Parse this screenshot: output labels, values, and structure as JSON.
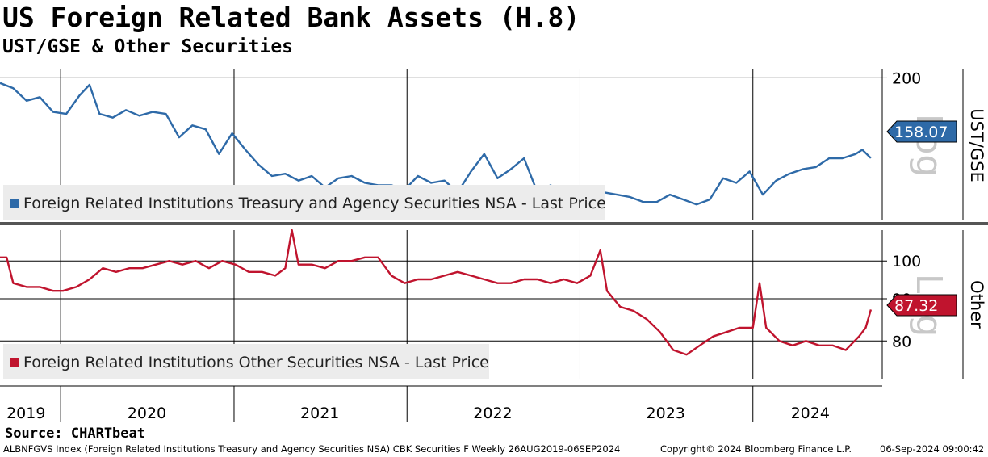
{
  "title": "US Foreign Related Bank Assets (H.8)",
  "subtitle": "UST/GSE & Other Securities",
  "source": "Source: CHARTbeat",
  "footer": {
    "left": "ALBNFGVS Index (Foreign Related Institutions Treasury and Agency Securities NSA) CBK Securities F  Weekly 26AUG2019-06SEP2024",
    "copyright": "Copyright© 2024 Bloomberg Finance L.P.",
    "timestamp": "06-Sep-2024 09:00:42"
  },
  "colors": {
    "top_series": "#2e6aa8",
    "bottom_series": "#c0142e",
    "separator": "#555555"
  },
  "chart_data": [
    {
      "type": "line",
      "panel": "top",
      "axis_label": "UST/GSE",
      "watermark": "Log",
      "y_scale": "log",
      "ylim": [
        132,
        205
      ],
      "yticks": [
        200
      ],
      "last_value_label": "158.07",
      "legend": "Foreign Related Institutions Treasury and Agency Securities NSA - Last Price",
      "series": [
        {
          "name": "Foreign Related Institutions Treasury and Agency Securities NSA - Last Price",
          "points": [
            [
              "2019-08-26",
              197
            ],
            [
              "2019-09-23",
              194
            ],
            [
              "2019-10-21",
              187
            ],
            [
              "2019-11-18",
              189
            ],
            [
              "2019-12-16",
              181
            ],
            [
              "2020-01-13",
              180
            ],
            [
              "2020-02-10",
              190
            ],
            [
              "2020-03-02",
              196
            ],
            [
              "2020-03-23",
              180
            ],
            [
              "2020-04-20",
              178
            ],
            [
              "2020-05-18",
              182
            ],
            [
              "2020-06-15",
              179
            ],
            [
              "2020-07-13",
              181
            ],
            [
              "2020-08-10",
              180
            ],
            [
              "2020-09-07",
              168
            ],
            [
              "2020-10-05",
              174
            ],
            [
              "2020-11-02",
              172
            ],
            [
              "2020-11-30",
              160
            ],
            [
              "2020-12-28",
              170
            ],
            [
              "2021-01-25",
              162
            ],
            [
              "2021-02-22",
              155
            ],
            [
              "2021-03-22",
              150
            ],
            [
              "2021-04-19",
              151
            ],
            [
              "2021-05-17",
              148
            ],
            [
              "2021-06-14",
              150
            ],
            [
              "2021-07-12",
              145
            ],
            [
              "2021-08-09",
              149
            ],
            [
              "2021-09-06",
              150
            ],
            [
              "2021-10-04",
              147
            ],
            [
              "2021-11-01",
              146
            ],
            [
              "2021-11-29",
              146
            ],
            [
              "2021-12-27",
              144
            ],
            [
              "2022-01-24",
              150
            ],
            [
              "2022-02-21",
              147
            ],
            [
              "2022-03-21",
              148
            ],
            [
              "2022-04-18",
              143
            ],
            [
              "2022-05-16",
              152
            ],
            [
              "2022-06-13",
              160
            ],
            [
              "2022-07-11",
              149
            ],
            [
              "2022-08-08",
              153
            ],
            [
              "2022-09-05",
              158
            ],
            [
              "2022-10-03",
              143
            ],
            [
              "2022-10-31",
              146
            ],
            [
              "2022-11-28",
              141
            ],
            [
              "2022-12-26",
              142
            ],
            [
              "2023-01-23",
              144
            ],
            [
              "2023-02-20",
              143
            ],
            [
              "2023-03-20",
              142
            ],
            [
              "2023-04-17",
              141
            ],
            [
              "2023-05-15",
              139
            ],
            [
              "2023-06-12",
              139
            ],
            [
              "2023-07-10",
              142
            ],
            [
              "2023-08-07",
              140
            ],
            [
              "2023-09-04",
              138
            ],
            [
              "2023-10-02",
              140
            ],
            [
              "2023-10-30",
              149
            ],
            [
              "2023-11-27",
              147
            ],
            [
              "2023-12-25",
              152
            ],
            [
              "2024-01-22",
              142
            ],
            [
              "2024-02-19",
              148
            ],
            [
              "2024-03-18",
              151
            ],
            [
              "2024-04-15",
              153
            ],
            [
              "2024-05-13",
              154
            ],
            [
              "2024-06-10",
              158
            ],
            [
              "2024-07-08",
              158
            ],
            [
              "2024-08-05",
              160
            ],
            [
              "2024-08-19",
              162
            ],
            [
              "2024-09-06",
              158.07
            ]
          ]
        }
      ]
    },
    {
      "type": "line",
      "panel": "bottom",
      "axis_label": "Other",
      "watermark": "Log",
      "y_scale": "log",
      "ylim": [
        72,
        109
      ],
      "yticks": [
        80,
        90,
        100
      ],
      "last_value_label": "87.32",
      "legend": "Foreign Related Institutions Other Securities NSA - Last Price",
      "series": [
        {
          "name": "Foreign Related Institutions Other Securities NSA - Last Price",
          "points": [
            [
              "2019-08-26",
              101
            ],
            [
              "2019-09-09",
              101
            ],
            [
              "2019-09-23",
              94
            ],
            [
              "2019-10-21",
              93
            ],
            [
              "2019-11-18",
              93
            ],
            [
              "2019-12-16",
              92
            ],
            [
              "2020-01-06",
              92
            ],
            [
              "2020-02-03",
              93
            ],
            [
              "2020-03-02",
              95
            ],
            [
              "2020-03-30",
              98
            ],
            [
              "2020-04-27",
              97
            ],
            [
              "2020-05-25",
              98
            ],
            [
              "2020-06-22",
              98
            ],
            [
              "2020-07-20",
              99
            ],
            [
              "2020-08-17",
              100
            ],
            [
              "2020-09-14",
              99
            ],
            [
              "2020-10-12",
              100
            ],
            [
              "2020-11-09",
              98
            ],
            [
              "2020-12-07",
              100
            ],
            [
              "2021-01-04",
              99
            ],
            [
              "2021-02-01",
              97
            ],
            [
              "2021-03-01",
              97
            ],
            [
              "2021-03-29",
              96
            ],
            [
              "2021-04-19",
              98
            ],
            [
              "2021-05-03",
              109
            ],
            [
              "2021-05-17",
              99
            ],
            [
              "2021-06-14",
              99
            ],
            [
              "2021-07-12",
              98
            ],
            [
              "2021-08-09",
              100
            ],
            [
              "2021-09-06",
              100
            ],
            [
              "2021-10-04",
              101
            ],
            [
              "2021-11-01",
              101
            ],
            [
              "2021-11-29",
              96
            ],
            [
              "2021-12-27",
              94
            ],
            [
              "2022-01-24",
              95
            ],
            [
              "2022-02-21",
              95
            ],
            [
              "2022-03-21",
              96
            ],
            [
              "2022-04-18",
              97
            ],
            [
              "2022-05-16",
              96
            ],
            [
              "2022-06-13",
              95
            ],
            [
              "2022-07-11",
              94
            ],
            [
              "2022-08-08",
              94
            ],
            [
              "2022-09-05",
              95
            ],
            [
              "2022-10-03",
              95
            ],
            [
              "2022-10-31",
              94
            ],
            [
              "2022-11-28",
              95
            ],
            [
              "2022-12-26",
              94
            ],
            [
              "2023-01-23",
              96
            ],
            [
              "2023-02-13",
              103
            ],
            [
              "2023-02-27",
              92
            ],
            [
              "2023-03-27",
              88
            ],
            [
              "2023-04-24",
              87
            ],
            [
              "2023-05-22",
              85
            ],
            [
              "2023-06-19",
              82
            ],
            [
              "2023-07-17",
              78
            ],
            [
              "2023-08-14",
              77
            ],
            [
              "2023-09-11",
              79
            ],
            [
              "2023-10-09",
              81
            ],
            [
              "2023-11-06",
              82
            ],
            [
              "2023-12-04",
              83
            ],
            [
              "2024-01-01",
              83
            ],
            [
              "2024-01-15",
              94
            ],
            [
              "2024-01-29",
              83
            ],
            [
              "2024-02-26",
              80
            ],
            [
              "2024-03-25",
              79
            ],
            [
              "2024-04-22",
              80
            ],
            [
              "2024-05-20",
              79
            ],
            [
              "2024-06-17",
              79
            ],
            [
              "2024-07-15",
              78
            ],
            [
              "2024-08-12",
              81
            ],
            [
              "2024-08-26",
              83
            ],
            [
              "2024-09-06",
              87.32
            ]
          ]
        }
      ]
    }
  ],
  "x_axis": {
    "labels": [
      "2019",
      "2020",
      "2021",
      "2022",
      "2023",
      "2024"
    ],
    "label_dates": [
      "2019-10-20",
      "2020-07-01",
      "2021-07-01",
      "2022-07-01",
      "2023-07-01",
      "2024-05-01"
    ],
    "divider_dates": [
      "2020-01-01",
      "2021-01-01",
      "2022-01-01",
      "2023-01-01",
      "2024-01-01"
    ]
  }
}
